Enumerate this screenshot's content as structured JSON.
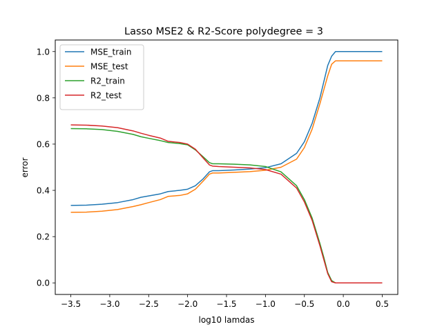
{
  "chart_data": {
    "type": "line",
    "title": "Lasso MSE2 & R2-Score polydegree = 3",
    "xlabel": "log10 lamdas",
    "ylabel": "error",
    "xlim": [
      -3.7,
      0.7
    ],
    "ylim": [
      -0.05,
      1.05
    ],
    "xticks": [
      -3.5,
      -3.0,
      -2.5,
      -2.0,
      -1.5,
      -1.0,
      -0.5,
      0.0,
      0.5
    ],
    "xtick_labels": [
      "−3.5",
      "−3.0",
      "−2.5",
      "−2.0",
      "−1.5",
      "−1.0",
      "−0.5",
      "0.0",
      "0.5"
    ],
    "yticks": [
      0.0,
      0.2,
      0.4,
      0.6,
      0.8,
      1.0
    ],
    "ytick_labels": [
      "0.0",
      "0.2",
      "0.4",
      "0.6",
      "0.8",
      "1.0"
    ],
    "grid": false,
    "legend_position": "top-left",
    "series": [
      {
        "name": "MSE_train",
        "color": "#1f77b4",
        "x": [
          -3.5,
          -3.3,
          -3.1,
          -2.9,
          -2.7,
          -2.6,
          -2.5,
          -2.35,
          -2.25,
          -2.1,
          -2.0,
          -1.9,
          -1.8,
          -1.72,
          -1.68,
          -1.6,
          -1.4,
          -1.2,
          -1.0,
          -0.8,
          -0.6,
          -0.5,
          -0.4,
          -0.3,
          -0.2,
          -0.15,
          -0.1,
          0.0,
          0.2,
          0.5
        ],
        "y": [
          0.335,
          0.336,
          0.34,
          0.347,
          0.36,
          0.37,
          0.376,
          0.385,
          0.395,
          0.4,
          0.405,
          0.42,
          0.45,
          0.48,
          0.485,
          0.485,
          0.488,
          0.492,
          0.498,
          0.515,
          0.56,
          0.61,
          0.69,
          0.8,
          0.94,
          0.98,
          1.0,
          1.0,
          1.0,
          1.0
        ]
      },
      {
        "name": "MSE_test",
        "color": "#ff7f0e",
        "x": [
          -3.5,
          -3.3,
          -3.1,
          -2.9,
          -2.7,
          -2.6,
          -2.5,
          -2.35,
          -2.25,
          -2.1,
          -2.0,
          -1.9,
          -1.8,
          -1.72,
          -1.68,
          -1.6,
          -1.4,
          -1.2,
          -1.0,
          -0.8,
          -0.6,
          -0.5,
          -0.4,
          -0.3,
          -0.2,
          -0.15,
          -0.1,
          0.0,
          0.2,
          0.5
        ],
        "y": [
          0.305,
          0.306,
          0.31,
          0.317,
          0.33,
          0.338,
          0.347,
          0.36,
          0.374,
          0.378,
          0.385,
          0.405,
          0.44,
          0.47,
          0.475,
          0.475,
          0.478,
          0.481,
          0.487,
          0.5,
          0.535,
          0.585,
          0.665,
          0.775,
          0.895,
          0.945,
          0.96,
          0.96,
          0.96,
          0.96
        ]
      },
      {
        "name": "R2_train",
        "color": "#2ca02c",
        "x": [
          -3.5,
          -3.3,
          -3.1,
          -2.9,
          -2.7,
          -2.6,
          -2.5,
          -2.35,
          -2.25,
          -2.1,
          -2.0,
          -1.9,
          -1.8,
          -1.72,
          -1.68,
          -1.6,
          -1.4,
          -1.2,
          -1.0,
          -0.8,
          -0.6,
          -0.5,
          -0.4,
          -0.3,
          -0.25,
          -0.2,
          -0.15,
          -0.1,
          0.0,
          0.2,
          0.5
        ],
        "y": [
          0.667,
          0.666,
          0.663,
          0.655,
          0.642,
          0.632,
          0.625,
          0.615,
          0.607,
          0.602,
          0.597,
          0.575,
          0.545,
          0.52,
          0.515,
          0.515,
          0.513,
          0.51,
          0.503,
          0.48,
          0.42,
          0.36,
          0.28,
          0.17,
          0.11,
          0.045,
          0.01,
          0.0,
          0.0,
          0.0,
          0.0
        ]
      },
      {
        "name": "R2_test",
        "color": "#d62728",
        "x": [
          -3.5,
          -3.3,
          -3.1,
          -2.9,
          -2.7,
          -2.6,
          -2.5,
          -2.35,
          -2.25,
          -2.1,
          -2.0,
          -1.9,
          -1.8,
          -1.72,
          -1.68,
          -1.6,
          -1.4,
          -1.2,
          -1.0,
          -0.8,
          -0.6,
          -0.5,
          -0.4,
          -0.3,
          -0.25,
          -0.2,
          -0.15,
          -0.1,
          0.0,
          0.2,
          0.5
        ],
        "y": [
          0.683,
          0.682,
          0.678,
          0.671,
          0.657,
          0.647,
          0.638,
          0.626,
          0.612,
          0.607,
          0.6,
          0.578,
          0.54,
          0.51,
          0.505,
          0.503,
          0.5,
          0.497,
          0.49,
          0.47,
          0.41,
          0.35,
          0.27,
          0.16,
          0.1,
          0.04,
          0.005,
          0.0,
          0.0,
          0.0,
          0.0
        ]
      }
    ]
  }
}
